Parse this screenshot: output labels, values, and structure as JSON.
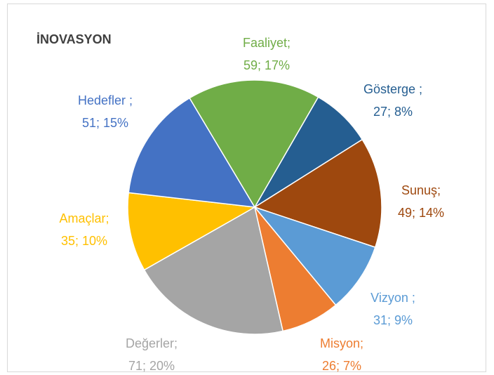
{
  "chart_data": {
    "type": "pie",
    "title": "İNOVASYON",
    "categories": [
      "Gösterge ;",
      "Sunuş;",
      "Vizyon ;",
      "Misyon;",
      "Değerler;",
      "Amaçlar;",
      "Hedefler ;",
      "Faaliyet;"
    ],
    "values": [
      27,
      49,
      31,
      26,
      71,
      35,
      51,
      59
    ],
    "value_labels": [
      "27; 8%",
      "49; 14%",
      "31; 9%",
      "26; 7%",
      "71; 20%",
      "35; 10%",
      "51; 15%",
      "59; 17%"
    ],
    "colors": [
      "#255e91",
      "#9e480e",
      "#5b9bd5",
      "#ed7d31",
      "#a5a5a5",
      "#ffc000",
      "#4472c4",
      "#70ad47"
    ]
  }
}
